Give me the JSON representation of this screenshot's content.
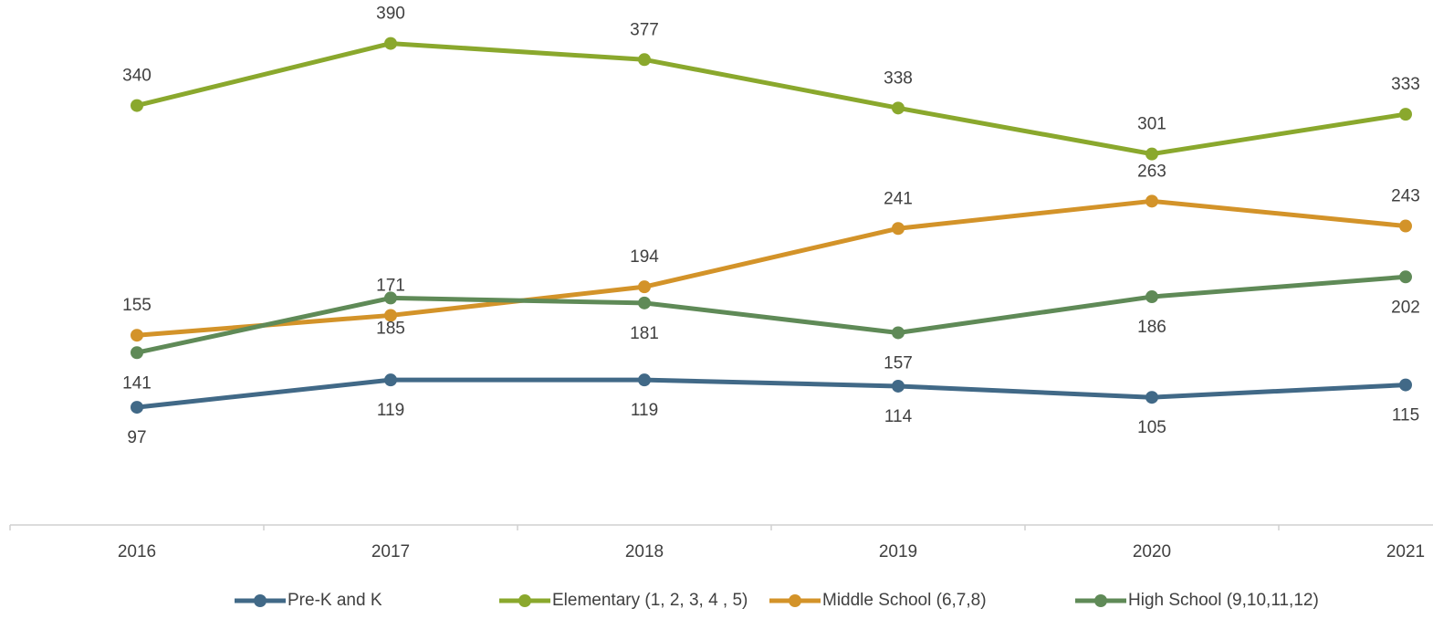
{
  "chart_data": {
    "type": "line",
    "categories": [
      "2016",
      "2017",
      "2018",
      "2019",
      "2020",
      "2021"
    ],
    "series": [
      {
        "name": "Pre-K and K",
        "color": "#416987",
        "values": [
          97,
          119,
          119,
          114,
          105,
          115
        ]
      },
      {
        "name": "Elementary (1, 2,  3, 4 , 5)",
        "color": "#8aa82d",
        "values": [
          340,
          390,
          377,
          338,
          301,
          333
        ]
      },
      {
        "name": "Middle School (6,7,8)",
        "color": "#d39329",
        "values": [
          155,
          171,
          194,
          241,
          263,
          243
        ]
      },
      {
        "name": "High School (9,10,11,12)",
        "color": "#5f8a57",
        "values": [
          141,
          185,
          181,
          157,
          186,
          202
        ]
      }
    ],
    "ylim": [
      0,
      425
    ],
    "grid": false,
    "legend": "bottom"
  }
}
